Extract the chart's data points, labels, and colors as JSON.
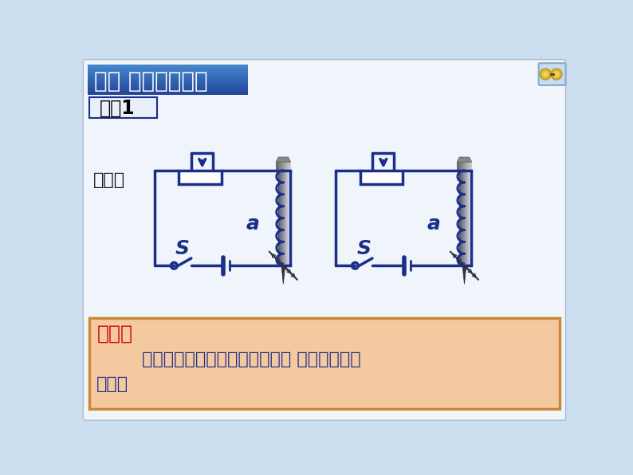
{
  "bg_color": "#ccdff0",
  "title_box_color_top": "#5588cc",
  "title_box_color_bot": "#2255aa",
  "title_text": "二、 电磁铁的磁性",
  "title_text_color": "#ffffff",
  "demo_text": "演示1",
  "demo_text_color": "#000000",
  "xianxiang_text": "现象：",
  "circuit_color": "#1a2e8a",
  "conclusion_box_bg": "#f5c9a0",
  "conclusion_box_border": "#cc8833",
  "conclusion_title": "结论：",
  "conclusion_title_color": "#cc0000",
  "conclusion_line1": "        匹数一定时，通入的电流越大， 电磁铁的磁性",
  "conclusion_line2": "越强。",
  "conclusion_body_color": "#1a2e8a"
}
